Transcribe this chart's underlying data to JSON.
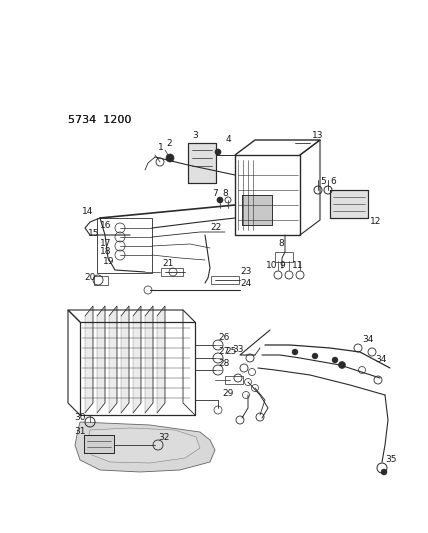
{
  "title": "5734  1200",
  "bg_color": "#ffffff",
  "line_color": "#2a2a2a",
  "text_color": "#1a1a1a",
  "title_fontsize": 7.5,
  "label_fontsize": 6.5,
  "fig_width": 4.28,
  "fig_height": 5.33,
  "dpi": 100
}
